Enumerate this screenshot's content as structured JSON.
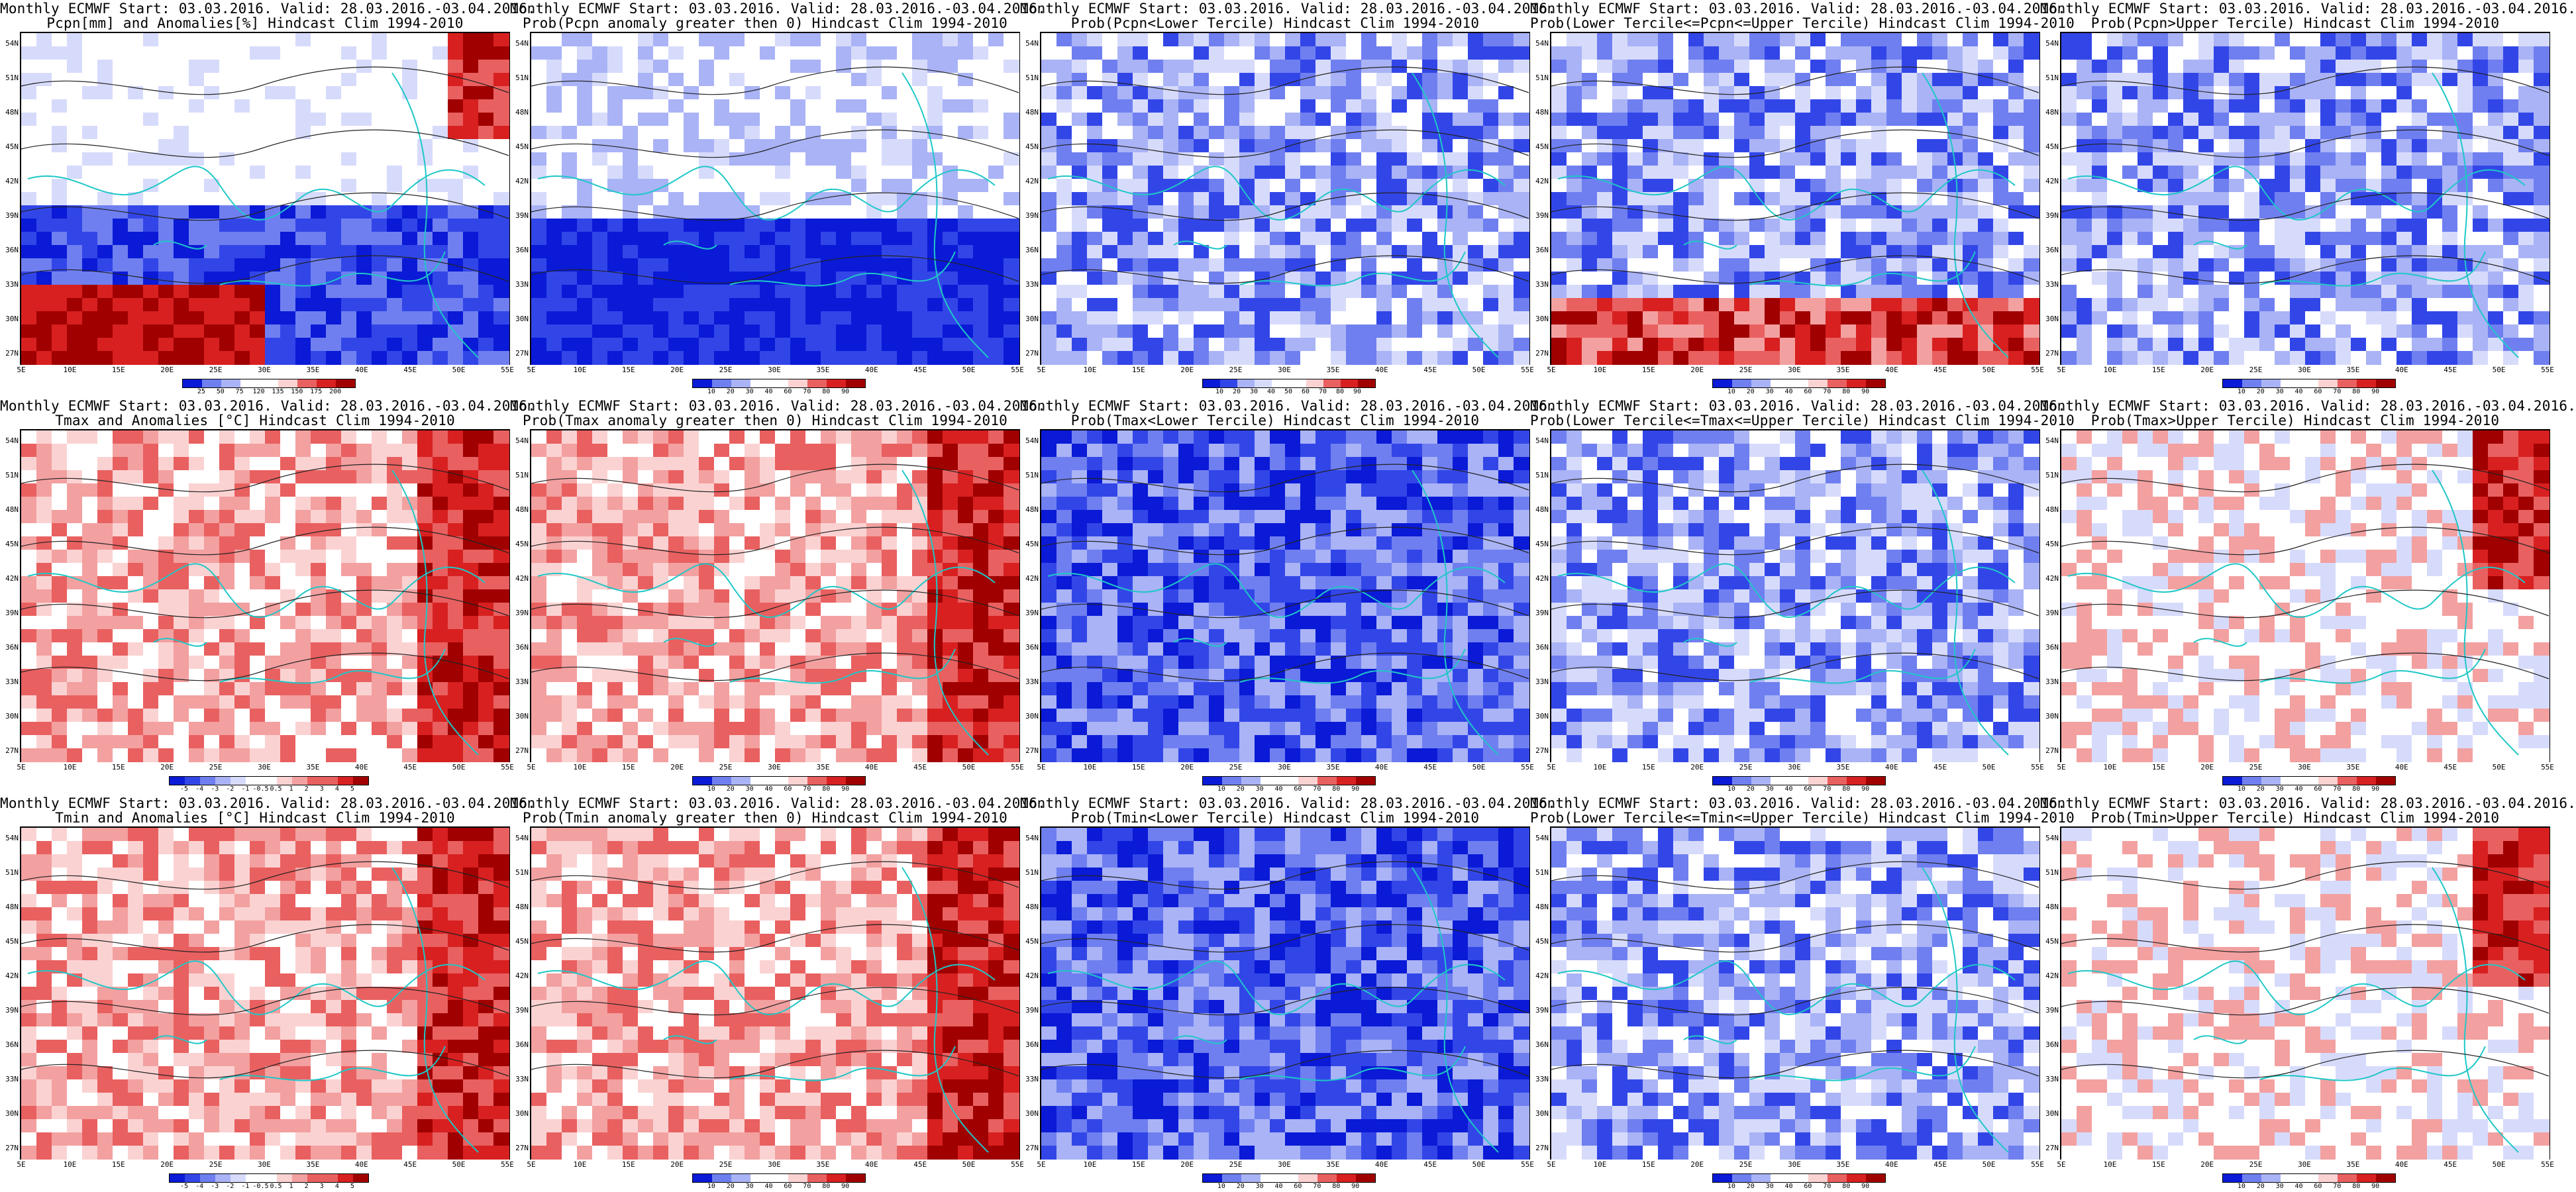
{
  "figure": {
    "title_line1": "Monthly ECMWF Start: 03.03.2016. Valid: 28.03.2016.-03.04.2016.",
    "lat_labels": [
      "54N",
      "51N",
      "48N",
      "45N",
      "42N",
      "39N",
      "36N",
      "33N",
      "30N",
      "27N"
    ],
    "lon_labels": [
      "5E",
      "10E",
      "15E",
      "20E",
      "25E",
      "30E",
      "35E",
      "40E",
      "45E",
      "50E",
      "55E"
    ],
    "panels": [
      {
        "id": "pcpn-anom",
        "subtitle": "Pcpn[mm] and Anomalies[%] Hindcast Clim 1994-2010",
        "scale": "pcpn",
        "colorbar_labels": [
          "25",
          "50",
          "75",
          "120",
          "135",
          "150",
          "175",
          "200"
        ],
        "dominant": "mixed-blue-low-red-northeast"
      },
      {
        "id": "pcpn-prob-pos",
        "subtitle": "Prob(Pcpn anomaly greater then 0) Hindcast Clim 1994-2010",
        "scale": "prob",
        "colorbar_labels": [
          "10",
          "20",
          "30",
          "40",
          "60",
          "70",
          "80",
          "90"
        ],
        "dominant": "blue-south"
      },
      {
        "id": "pcpn-prob-lower",
        "subtitle": "Prob(Pcpn<Lower Tercile) Hindcast Clim 1994-2010",
        "scale": "prob",
        "colorbar_labels": [
          "10",
          "20",
          "30",
          "40",
          "50",
          "60",
          "70",
          "80",
          "90"
        ],
        "dominant": "blue"
      },
      {
        "id": "pcpn-prob-middle",
        "subtitle": "Prob(Lower Tercile<=Pcpn<=Upper Tercile) Hindcast Clim 1994-2010",
        "scale": "prob",
        "colorbar_labels": [
          "10",
          "20",
          "30",
          "40",
          "60",
          "70",
          "80",
          "90"
        ],
        "dominant": "blue-red-south"
      },
      {
        "id": "pcpn-prob-upper",
        "subtitle": "Prob(Pcpn>Upper Tercile) Hindcast Clim 1994-2010",
        "scale": "prob",
        "colorbar_labels": [
          "10",
          "20",
          "30",
          "40",
          "60",
          "70",
          "80",
          "90"
        ],
        "dominant": "blue"
      },
      {
        "id": "tmax-anom",
        "subtitle": "Tmax and Anomalies [°C] Hindcast Clim 1994-2010",
        "scale": "temp",
        "colorbar_labels": [
          "-5",
          "-4",
          "-3",
          "-2",
          "-1",
          "-0.5",
          "0.5",
          "1",
          "2",
          "3",
          "4",
          "5"
        ],
        "dominant": "red"
      },
      {
        "id": "tmax-prob-pos",
        "subtitle": "Prob(Tmax anomaly greater then 0) Hindcast Clim 1994-2010",
        "scale": "prob",
        "colorbar_labels": [
          "10",
          "20",
          "30",
          "40",
          "60",
          "70",
          "80",
          "90"
        ],
        "dominant": "red"
      },
      {
        "id": "tmax-prob-lower",
        "subtitle": "Prob(Tmax<Lower Tercile) Hindcast Clim 1994-2010",
        "scale": "prob",
        "colorbar_labels": [
          "10",
          "20",
          "30",
          "40",
          "60",
          "70",
          "80",
          "90"
        ],
        "dominant": "blue-deep"
      },
      {
        "id": "tmax-prob-middle",
        "subtitle": "Prob(Lower Tercile<=Tmax<=Upper Tercile) Hindcast Clim 1994-2010",
        "scale": "prob",
        "colorbar_labels": [
          "10",
          "20",
          "30",
          "40",
          "60",
          "70",
          "80",
          "90"
        ],
        "dominant": "blue"
      },
      {
        "id": "tmax-prob-upper",
        "subtitle": "Prob(Tmax>Upper Tercile) Hindcast Clim 1994-2010",
        "scale": "prob",
        "colorbar_labels": [
          "10",
          "20",
          "30",
          "40",
          "60",
          "70",
          "80",
          "90"
        ],
        "dominant": "white-red-east"
      },
      {
        "id": "tmin-anom",
        "subtitle": "Tmin and Anomalies [°C] Hindcast Clim 1994-2010",
        "scale": "temp",
        "colorbar_labels": [
          "-5",
          "-4",
          "-3",
          "-2",
          "-1",
          "-0.5",
          "0.5",
          "1",
          "2",
          "3",
          "4",
          "5"
        ],
        "dominant": "red"
      },
      {
        "id": "tmin-prob-pos",
        "subtitle": "Prob(Tmin anomaly greater then 0) Hindcast Clim 1994-2010",
        "scale": "prob",
        "colorbar_labels": [
          "10",
          "20",
          "30",
          "40",
          "60",
          "70",
          "80",
          "90"
        ],
        "dominant": "red"
      },
      {
        "id": "tmin-prob-lower",
        "subtitle": "Prob(Tmin<Lower Tercile) Hindcast Clim 1994-2010",
        "scale": "prob",
        "colorbar_labels": [
          "10",
          "20",
          "30",
          "40",
          "60",
          "70",
          "80",
          "90"
        ],
        "dominant": "blue-deep"
      },
      {
        "id": "tmin-prob-middle",
        "subtitle": "Prob(Lower Tercile<=Tmin<=Upper Tercile) Hindcast Clim 1994-2010",
        "scale": "prob",
        "colorbar_labels": [
          "10",
          "20",
          "30",
          "40",
          "60",
          "70",
          "80",
          "90"
        ],
        "dominant": "blue"
      },
      {
        "id": "tmin-prob-upper",
        "subtitle": "Prob(Tmin>Upper Tercile) Hindcast Clim 1994-2010",
        "scale": "prob",
        "colorbar_labels": [
          "10",
          "20",
          "30",
          "40",
          "60",
          "70",
          "80",
          "90"
        ],
        "dominant": "white-red-east"
      }
    ],
    "colors": {
      "coast": "#1fc7c7",
      "contour": "#222222",
      "frame": "#000000",
      "blue_scale": [
        "#0a1ad6",
        "#3246e8",
        "#6f7ff0",
        "#a9b3f6",
        "#d7dbfb",
        "#ffffff"
      ],
      "red_scale": [
        "#ffffff",
        "#fbd2d2",
        "#f3a0a0",
        "#e96060",
        "#d82020",
        "#a00000"
      ]
    }
  }
}
